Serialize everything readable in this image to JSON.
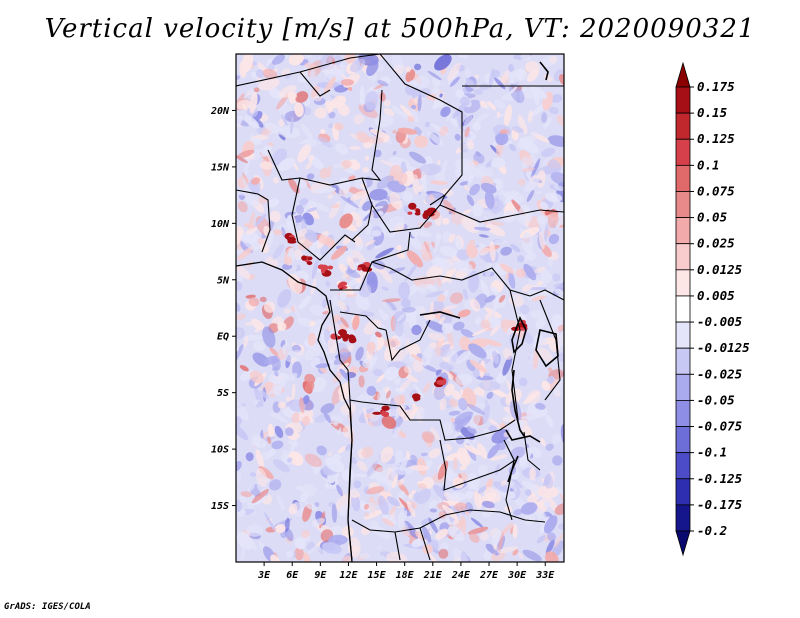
{
  "title": "Vertical velocity [m/s] at 500hPa, VT: 2020090321",
  "footer": "GrADS: IGES/COLA",
  "map": {
    "lat_labels": [
      "20N",
      "15N",
      "10N",
      "5N",
      "EQ",
      "5S",
      "10S",
      "15S"
    ],
    "lon_labels": [
      "3E",
      "6E",
      "9E",
      "12E",
      "15E",
      "18E",
      "21E",
      "24E",
      "27E",
      "30E",
      "33E"
    ],
    "lon_range": [
      0,
      35
    ],
    "lat_range": [
      -20,
      25
    ]
  },
  "colorbar": {
    "levels": [
      "0.175",
      "0.15",
      "0.125",
      "0.1",
      "0.075",
      "0.05",
      "0.025",
      "0.0125",
      "0.005",
      "-0.005",
      "-0.0125",
      "-0.025",
      "-0.05",
      "-0.075",
      "-0.1",
      "-0.125",
      "-0.175",
      "-0.2"
    ],
    "colors": [
      "#8b0000",
      "#a50f15",
      "#c0282d",
      "#d6404a",
      "#e06a6a",
      "#e98a8a",
      "#f2aaaa",
      "#f8cccc",
      "#fde6e6",
      "#ffffff",
      "#e4e4fa",
      "#c8c8f5",
      "#aaaaee",
      "#8e8ee6",
      "#6e6ed8",
      "#4c4cc8",
      "#2e2eb0",
      "#16168c",
      "#0a0a6e"
    ]
  }
}
